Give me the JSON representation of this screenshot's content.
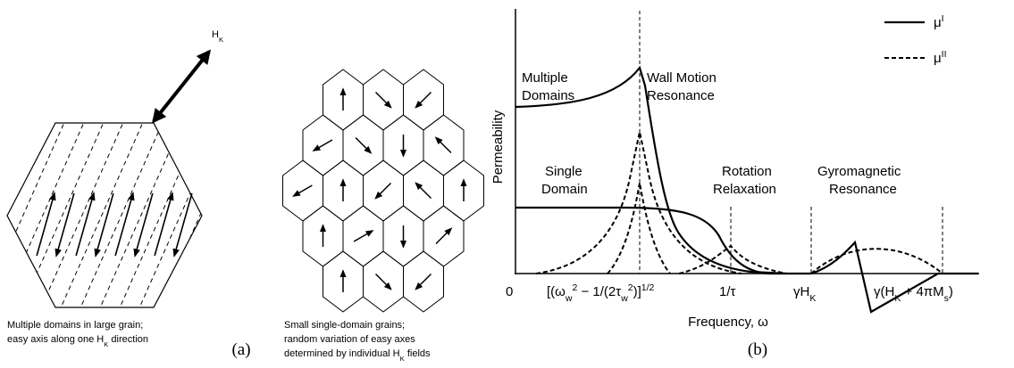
{
  "panel_a": {
    "field_label": [
      "H",
      {
        "sub": "K"
      }
    ],
    "grain_caption": [
      [
        "Multiple domains in large grain;"
      ],
      [
        "easy axis along one H",
        {
          "sub": "K"
        },
        " direction"
      ]
    ],
    "grains_caption": [
      [
        "Small single-domain grains;"
      ],
      [
        "random variation of easy axes"
      ],
      [
        "determined by individual H",
        {
          "sub": "K"
        },
        " fields"
      ]
    ],
    "label": "(a)"
  },
  "panel_b": {
    "y_axis_label": "Permeability",
    "x_axis_label": "Frequency, ω",
    "regions": [
      [
        "Multiple",
        "Domains"
      ],
      [
        "Wall Motion",
        "Resonance"
      ],
      [
        "Single",
        "Domain"
      ],
      [
        "Rotation",
        "Relaxation"
      ],
      [
        "Gyromagnetic",
        "Resonance"
      ]
    ],
    "legend": [
      [
        "μ",
        {
          "sup": "I"
        }
      ],
      [
        "μ",
        {
          "sup": "II"
        }
      ]
    ],
    "x_tick_labels": [
      [
        "0"
      ],
      [
        "[(ω",
        {
          "sub": "w"
        },
        {
          "sup": "2"
        },
        " − 1/(2τ",
        {
          "sub": "w"
        },
        {
          "sup": "2"
        },
        ")]",
        {
          "sup": "1/2"
        }
      ],
      [
        "1/τ"
      ],
      [
        "γH",
        {
          "sub": "K"
        }
      ],
      [
        "γ(H",
        {
          "sub": "K"
        },
        " + 4πM",
        {
          "sub": "s"
        },
        ")"
      ]
    ],
    "label": "(b)"
  }
}
